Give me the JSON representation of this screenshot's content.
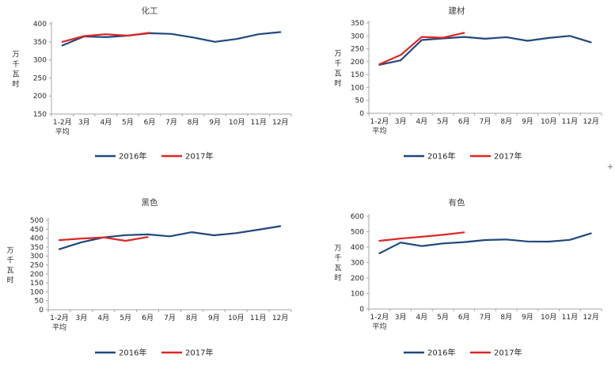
{
  "cursor": {
    "glyph": "+"
  },
  "palette": {
    "series2016": "#1F497D",
    "series2017": "#DE2726",
    "axis": "#A6A6A6",
    "tick_text": "#262626",
    "title_text": "#404040"
  },
  "chart_data": [
    {
      "type": "line",
      "title": "化工",
      "ylabel": "万千瓦时",
      "categories": [
        "1-2月\n平均",
        "3月",
        "4月",
        "5月",
        "6月",
        "7月",
        "8月",
        "9月",
        "10月",
        "11月",
        "12月"
      ],
      "series": [
        {
          "name": "2016年",
          "color": "#1F497D",
          "values": [
            340,
            365,
            363,
            367,
            374,
            372,
            362,
            350,
            358,
            371,
            377
          ]
        },
        {
          "name": "2017年",
          "color": "#DE2726",
          "values": [
            350,
            366,
            371,
            367,
            375
          ]
        }
      ],
      "ylim": [
        150,
        400
      ],
      "ystep": 50,
      "grid": false,
      "legend_position": "bottom"
    },
    {
      "type": "line",
      "title": "建材",
      "ylabel": "万千瓦时",
      "categories": [
        "1-2月\n平均",
        "3月",
        "4月",
        "5月",
        "6月",
        "7月",
        "8月",
        "9月",
        "10月",
        "11月",
        "12月"
      ],
      "series": [
        {
          "name": "2016年",
          "color": "#1F497D",
          "values": [
            188,
            205,
            284,
            290,
            296,
            289,
            295,
            281,
            292,
            300,
            275
          ]
        },
        {
          "name": "2017年",
          "color": "#DE2726",
          "values": [
            190,
            226,
            296,
            293,
            312
          ]
        }
      ],
      "ylim": [
        0,
        350
      ],
      "ystep": 50,
      "grid": false,
      "legend_position": "bottom"
    },
    {
      "type": "line",
      "title": "黑色",
      "ylabel": "万千瓦时",
      "categories": [
        "1-2月\n平均",
        "3月",
        "4月",
        "5月",
        "6月",
        "7月",
        "8月",
        "9月",
        "10月",
        "11月",
        "12月"
      ],
      "series": [
        {
          "name": "2016年",
          "color": "#1F497D",
          "values": [
            338,
            377,
            404,
            417,
            421,
            410,
            433,
            416,
            428,
            447,
            467
          ]
        },
        {
          "name": "2017年",
          "color": "#DE2726",
          "values": [
            389,
            398,
            404,
            385,
            406
          ]
        }
      ],
      "ylim": [
        0,
        500
      ],
      "ystep": 50,
      "grid": false,
      "legend_position": "bottom"
    },
    {
      "type": "line",
      "title": "有色",
      "ylabel": "万千瓦时",
      "categories": [
        "1-2月\n平均",
        "3月",
        "4月",
        "5月",
        "6月",
        "7月",
        "8月",
        "9月",
        "10月",
        "11月",
        "12月"
      ],
      "series": [
        {
          "name": "2016年",
          "color": "#1F497D",
          "values": [
            360,
            430,
            407,
            424,
            433,
            446,
            450,
            437,
            436,
            447,
            489
          ]
        },
        {
          "name": "2017年",
          "color": "#DE2726",
          "values": [
            441,
            456,
            467,
            480,
            496
          ]
        }
      ],
      "ylim": [
        0,
        600
      ],
      "ystep": 100,
      "grid": false,
      "legend_position": "bottom"
    }
  ]
}
